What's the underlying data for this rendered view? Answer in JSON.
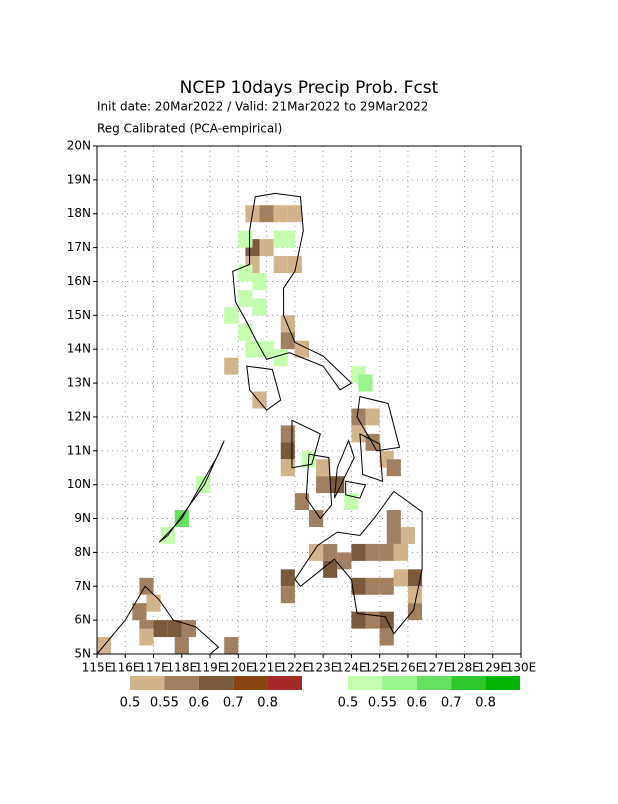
{
  "chart_data": {
    "type": "map",
    "title": "NCEP 10days Precip Prob. Fcst",
    "subtitle": "Init date: 20Mar2022 / Valid: 21Mar2022 to 29Mar2022",
    "note": "Reg Calibrated (PCA-empirical)",
    "xlim": [
      115,
      130
    ],
    "ylim": [
      5,
      20
    ],
    "grid": true,
    "xticks": [
      {
        "value": 115,
        "label": "115E"
      },
      {
        "value": 116,
        "label": "116E"
      },
      {
        "value": 117,
        "label": "117E"
      },
      {
        "value": 118,
        "label": "118E"
      },
      {
        "value": 119,
        "label": "119E"
      },
      {
        "value": 120,
        "label": "120E"
      },
      {
        "value": 121,
        "label": "121E"
      },
      {
        "value": 122,
        "label": "122E"
      },
      {
        "value": 123,
        "label": "123E"
      },
      {
        "value": 124,
        "label": "124E"
      },
      {
        "value": 125,
        "label": "125E"
      },
      {
        "value": 126,
        "label": "126E"
      },
      {
        "value": 127,
        "label": "127E"
      },
      {
        "value": 128,
        "label": "128E"
      },
      {
        "value": 129,
        "label": "129E"
      },
      {
        "value": 130,
        "label": "130E"
      }
    ],
    "yticks": [
      {
        "value": 5,
        "label": "5N"
      },
      {
        "value": 6,
        "label": "6N"
      },
      {
        "value": 7,
        "label": "7N"
      },
      {
        "value": 8,
        "label": "8N"
      },
      {
        "value": 9,
        "label": "9N"
      },
      {
        "value": 10,
        "label": "10N"
      },
      {
        "value": 11,
        "label": "11N"
      },
      {
        "value": 12,
        "label": "12N"
      },
      {
        "value": 13,
        "label": "13N"
      },
      {
        "value": 14,
        "label": "14N"
      },
      {
        "value": 15,
        "label": "15N"
      },
      {
        "value": 16,
        "label": "16N"
      },
      {
        "value": 17,
        "label": "17N"
      },
      {
        "value": 18,
        "label": "18N"
      },
      {
        "value": 19,
        "label": "19N"
      },
      {
        "value": 20,
        "label": "20N"
      }
    ],
    "dry_legend": {
      "values": [
        0.5,
        0.55,
        0.6,
        0.7,
        0.8
      ],
      "colors": [
        "#d2b48c",
        "#a08060",
        "#7a5a3c",
        "#8b4513",
        "#a52a2a"
      ]
    },
    "wet_legend": {
      "values": [
        0.5,
        0.55,
        0.6,
        0.7,
        0.8
      ],
      "colors": [
        "#c4ffb0",
        "#98f58c",
        "#66e060",
        "#2ec82e",
        "#00b400"
      ]
    },
    "dry_cells": [
      {
        "lon": 120.5,
        "lat": 18.0,
        "prob": 0.5
      },
      {
        "lon": 121.0,
        "lat": 18.0,
        "prob": 0.55
      },
      {
        "lon": 121.5,
        "lat": 18.0,
        "prob": 0.5
      },
      {
        "lon": 122.0,
        "lat": 18.0,
        "prob": 0.5
      },
      {
        "lon": 120.5,
        "lat": 17.0,
        "prob": 0.6
      },
      {
        "lon": 121.0,
        "lat": 17.0,
        "prob": 0.5
      },
      {
        "lon": 120.5,
        "lat": 16.5,
        "prob": 0.5
      },
      {
        "lon": 121.5,
        "lat": 16.5,
        "prob": 0.5
      },
      {
        "lon": 122.0,
        "lat": 16.5,
        "prob": 0.5
      },
      {
        "lon": 121.75,
        "lat": 14.75,
        "prob": 0.5
      },
      {
        "lon": 121.75,
        "lat": 14.25,
        "prob": 0.55
      },
      {
        "lon": 122.25,
        "lat": 14.0,
        "prob": 0.5
      },
      {
        "lon": 119.75,
        "lat": 13.5,
        "prob": 0.5
      },
      {
        "lon": 120.75,
        "lat": 12.5,
        "prob": 0.5
      },
      {
        "lon": 121.75,
        "lat": 11.5,
        "prob": 0.55
      },
      {
        "lon": 121.75,
        "lat": 11.0,
        "prob": 0.6
      },
      {
        "lon": 121.75,
        "lat": 10.5,
        "prob": 0.5
      },
      {
        "lon": 122.25,
        "lat": 9.5,
        "prob": 0.55
      },
      {
        "lon": 122.75,
        "lat": 9.0,
        "prob": 0.55
      },
      {
        "lon": 123.0,
        "lat": 10.5,
        "prob": 0.5
      },
      {
        "lon": 123.5,
        "lat": 10.0,
        "prob": 0.6
      },
      {
        "lon": 123.0,
        "lat": 10.0,
        "prob": 0.55
      },
      {
        "lon": 124.25,
        "lat": 12.0,
        "prob": 0.55
      },
      {
        "lon": 124.75,
        "lat": 12.0,
        "prob": 0.5
      },
      {
        "lon": 124.25,
        "lat": 11.5,
        "prob": 0.5
      },
      {
        "lon": 124.75,
        "lat": 11.25,
        "prob": 0.55
      },
      {
        "lon": 125.25,
        "lat": 10.75,
        "prob": 0.5
      },
      {
        "lon": 125.5,
        "lat": 10.5,
        "prob": 0.55
      },
      {
        "lon": 121.75,
        "lat": 7.25,
        "prob": 0.6
      },
      {
        "lon": 121.75,
        "lat": 6.75,
        "prob": 0.55
      },
      {
        "lon": 122.75,
        "lat": 8.0,
        "prob": 0.5
      },
      {
        "lon": 123.25,
        "lat": 8.0,
        "prob": 0.55
      },
      {
        "lon": 123.75,
        "lat": 7.75,
        "prob": 0.55
      },
      {
        "lon": 123.25,
        "lat": 7.5,
        "prob": 0.6
      },
      {
        "lon": 124.25,
        "lat": 8.0,
        "prob": 0.6
      },
      {
        "lon": 124.75,
        "lat": 8.0,
        "prob": 0.55
      },
      {
        "lon": 125.25,
        "lat": 8.0,
        "prob": 0.55
      },
      {
        "lon": 125.75,
        "lat": 8.0,
        "prob": 0.5
      },
      {
        "lon": 126.0,
        "lat": 8.5,
        "prob": 0.5
      },
      {
        "lon": 125.5,
        "lat": 8.5,
        "prob": 0.55
      },
      {
        "lon": 125.5,
        "lat": 9.0,
        "prob": 0.55
      },
      {
        "lon": 124.25,
        "lat": 7.0,
        "prob": 0.6
      },
      {
        "lon": 124.75,
        "lat": 7.0,
        "prob": 0.55
      },
      {
        "lon": 125.25,
        "lat": 7.0,
        "prob": 0.55
      },
      {
        "lon": 125.75,
        "lat": 7.25,
        "prob": 0.5
      },
      {
        "lon": 126.25,
        "lat": 7.25,
        "prob": 0.6
      },
      {
        "lon": 126.25,
        "lat": 6.75,
        "prob": 0.5
      },
      {
        "lon": 126.25,
        "lat": 6.25,
        "prob": 0.55
      },
      {
        "lon": 124.25,
        "lat": 6.0,
        "prob": 0.6
      },
      {
        "lon": 124.75,
        "lat": 6.0,
        "prob": 0.55
      },
      {
        "lon": 125.25,
        "lat": 6.0,
        "prob": 0.6
      },
      {
        "lon": 125.25,
        "lat": 5.5,
        "prob": 0.55
      },
      {
        "lon": 116.75,
        "lat": 7.0,
        "prob": 0.55
      },
      {
        "lon": 117.0,
        "lat": 6.5,
        "prob": 0.5
      },
      {
        "lon": 116.5,
        "lat": 6.25,
        "prob": 0.55
      },
      {
        "lon": 116.75,
        "lat": 5.75,
        "prob": 0.55
      },
      {
        "lon": 117.25,
        "lat": 5.75,
        "prob": 0.6
      },
      {
        "lon": 117.75,
        "lat": 5.75,
        "prob": 0.6
      },
      {
        "lon": 118.25,
        "lat": 5.75,
        "prob": 0.55
      },
      {
        "lon": 116.75,
        "lat": 5.5,
        "prob": 0.5
      },
      {
        "lon": 118.0,
        "lat": 5.25,
        "prob": 0.55
      },
      {
        "lon": 115.25,
        "lat": 5.25,
        "prob": 0.5
      },
      {
        "lon": 119.75,
        "lat": 5.25,
        "prob": 0.55
      }
    ],
    "wet_cells": [
      {
        "lon": 120.25,
        "lat": 17.25,
        "prob": 0.5
      },
      {
        "lon": 121.5,
        "lat": 17.25,
        "prob": 0.5
      },
      {
        "lon": 121.75,
        "lat": 17.25,
        "prob": 0.5
      },
      {
        "lon": 120.25,
        "lat": 16.25,
        "prob": 0.5
      },
      {
        "lon": 120.75,
        "lat": 16.0,
        "prob": 0.5
      },
      {
        "lon": 120.25,
        "lat": 15.5,
        "prob": 0.5
      },
      {
        "lon": 120.75,
        "lat": 15.25,
        "prob": 0.5
      },
      {
        "lon": 119.75,
        "lat": 15.0,
        "prob": 0.5
      },
      {
        "lon": 120.25,
        "lat": 14.5,
        "prob": 0.5
      },
      {
        "lon": 121.0,
        "lat": 14.0,
        "prob": 0.5
      },
      {
        "lon": 121.5,
        "lat": 13.75,
        "prob": 0.5
      },
      {
        "lon": 120.5,
        "lat": 14.0,
        "prob": 0.5
      },
      {
        "lon": 124.25,
        "lat": 13.25,
        "prob": 0.5
      },
      {
        "lon": 124.5,
        "lat": 13.0,
        "prob": 0.55
      },
      {
        "lon": 118.0,
        "lat": 9.0,
        "prob": 0.6
      },
      {
        "lon": 118.75,
        "lat": 10.0,
        "prob": 0.5
      },
      {
        "lon": 117.5,
        "lat": 8.5,
        "prob": 0.5
      },
      {
        "lon": 122.5,
        "lat": 10.75,
        "prob": 0.5
      },
      {
        "lon": 124.0,
        "lat": 9.5,
        "prob": 0.5
      }
    ]
  }
}
